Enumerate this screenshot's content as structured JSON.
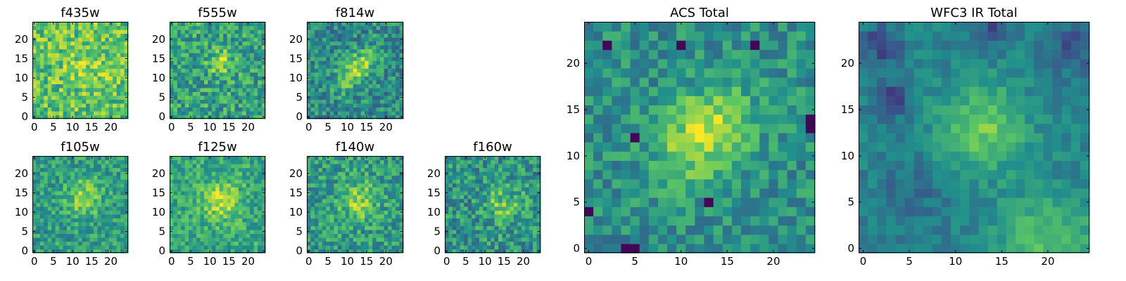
{
  "figure": {
    "colormap": [
      "#440154",
      "#3b528b",
      "#21908c",
      "#5dc863",
      "#fde725"
    ]
  },
  "chart_data": [
    {
      "type": "heatmap",
      "title": "f435w",
      "grid": [
        25,
        25
      ],
      "xticks": [
        0,
        5,
        10,
        15,
        20
      ],
      "yticks": [
        0,
        5,
        10,
        15,
        20
      ],
      "xlim": [
        -0.5,
        24.5
      ],
      "ylim": [
        -0.5,
        24.5
      ],
      "seed": 11,
      "blob": {
        "x": 14,
        "y": 14,
        "sigma": 4.0,
        "amp": 0.12
      },
      "base": 0.72,
      "noise": 0.22,
      "clusters": []
    },
    {
      "type": "heatmap",
      "title": "f555w",
      "grid": [
        25,
        25
      ],
      "xticks": [
        0,
        5,
        10,
        15,
        20
      ],
      "yticks": [
        0,
        5,
        10,
        15,
        20
      ],
      "xlim": [
        -0.5,
        24.5
      ],
      "ylim": [
        -0.5,
        24.5
      ],
      "seed": 23,
      "blob": {
        "x": 13,
        "y": 14,
        "sigma": 2.2,
        "amp": 0.3
      },
      "base": 0.58,
      "noise": 0.22,
      "clusters": []
    },
    {
      "type": "heatmap",
      "title": "f814w",
      "grid": [
        25,
        25
      ],
      "xticks": [
        0,
        5,
        10,
        15,
        20
      ],
      "yticks": [
        0,
        5,
        10,
        15,
        20
      ],
      "xlim": [
        -0.5,
        24.5
      ],
      "ylim": [
        -0.5,
        24.5
      ],
      "seed": 37,
      "blob": {
        "x": 12.5,
        "y": 12.5,
        "sigma": 2.4,
        "amp": 0.38,
        "elong": 1.9
      },
      "base": 0.48,
      "noise": 0.2,
      "clusters": []
    },
    {
      "type": "heatmap",
      "title": "f105w",
      "grid": [
        25,
        25
      ],
      "xticks": [
        0,
        5,
        10,
        15,
        20
      ],
      "yticks": [
        0,
        5,
        10,
        15,
        20
      ],
      "xlim": [
        -0.5,
        24.5
      ],
      "ylim": [
        -0.5,
        24.5
      ],
      "seed": 41,
      "blob": {
        "x": 13,
        "y": 14,
        "sigma": 3.2,
        "amp": 0.3
      },
      "base": 0.55,
      "noise": 0.18,
      "clusters": []
    },
    {
      "type": "heatmap",
      "title": "f125w",
      "grid": [
        25,
        25
      ],
      "xticks": [
        0,
        5,
        10,
        15,
        20
      ],
      "yticks": [
        0,
        5,
        10,
        15,
        20
      ],
      "xlim": [
        -0.5,
        24.5
      ],
      "ylim": [
        -0.5,
        24.5
      ],
      "seed": 53,
      "blob": {
        "x": 13,
        "y": 13,
        "sigma": 3.6,
        "amp": 0.3
      },
      "base": 0.6,
      "noise": 0.17,
      "clusters": []
    },
    {
      "type": "heatmap",
      "title": "f140w",
      "grid": [
        25,
        25
      ],
      "xticks": [
        0,
        5,
        10,
        15,
        20
      ],
      "yticks": [
        0,
        5,
        10,
        15,
        20
      ],
      "xlim": [
        -0.5,
        24.5
      ],
      "ylim": [
        -0.5,
        24.5
      ],
      "seed": 67,
      "blob": {
        "x": 13,
        "y": 13,
        "sigma": 3.5,
        "amp": 0.28
      },
      "base": 0.55,
      "noise": 0.2,
      "clusters": []
    },
    {
      "type": "heatmap",
      "title": "f160w",
      "grid": [
        25,
        25
      ],
      "xticks": [
        0,
        5,
        10,
        15,
        20
      ],
      "yticks": [
        0,
        5,
        10,
        15,
        20
      ],
      "xlim": [
        -0.5,
        24.5
      ],
      "ylim": [
        -0.5,
        24.5
      ],
      "seed": 79,
      "blob": {
        "x": 15,
        "y": 12,
        "sigma": 3.2,
        "amp": 0.25
      },
      "base": 0.52,
      "noise": 0.22,
      "clusters": []
    },
    {
      "type": "heatmap",
      "title": "ACS Total",
      "grid": [
        25,
        25
      ],
      "xticks": [
        0,
        5,
        10,
        15,
        20
      ],
      "yticks": [
        0,
        5,
        10,
        15,
        20
      ],
      "xlim": [
        -0.5,
        24.5
      ],
      "ylim": [
        -0.5,
        24.5
      ],
      "seed": 97,
      "blob": {
        "x": 12.5,
        "y": 12.5,
        "sigma": 2.8,
        "amp": 0.42,
        "elong": 1.4
      },
      "base": 0.5,
      "noise": 0.16,
      "clusters": [],
      "dark_cells": [
        [
          4,
          0
        ],
        [
          5,
          0
        ],
        [
          5,
          12
        ],
        [
          24,
          13
        ],
        [
          24,
          14
        ],
        [
          0,
          4
        ],
        [
          2,
          22
        ],
        [
          10,
          22
        ],
        [
          18,
          22
        ],
        [
          13,
          5
        ]
      ]
    },
    {
      "type": "heatmap",
      "title": "WFC3 IR Total",
      "grid": [
        25,
        25
      ],
      "xticks": [
        0,
        5,
        10,
        15,
        20
      ],
      "yticks": [
        0,
        5,
        10,
        15,
        20
      ],
      "xlim": [
        -0.5,
        24.5
      ],
      "ylim": [
        -0.5,
        24.5
      ],
      "seed": 131,
      "blob": {
        "x": 13,
        "y": 13,
        "sigma": 3.3,
        "amp": 0.32
      },
      "base": 0.45,
      "noise": 0.09,
      "clusters": [
        {
          "x": 3,
          "y": 16,
          "sigma": 1.3,
          "amp": -0.3
        },
        {
          "x": 2,
          "y": 22,
          "sigma": 1.5,
          "amp": -0.25
        },
        {
          "x": 14,
          "y": 24,
          "sigma": 1.4,
          "amp": -0.2
        },
        {
          "x": 23,
          "y": 22,
          "sigma": 2.0,
          "amp": -0.18
        },
        {
          "x": 20,
          "y": 1,
          "sigma": 3.5,
          "amp": 0.28
        },
        {
          "x": 5,
          "y": 6,
          "sigma": 2.5,
          "amp": -0.1
        }
      ]
    }
  ]
}
